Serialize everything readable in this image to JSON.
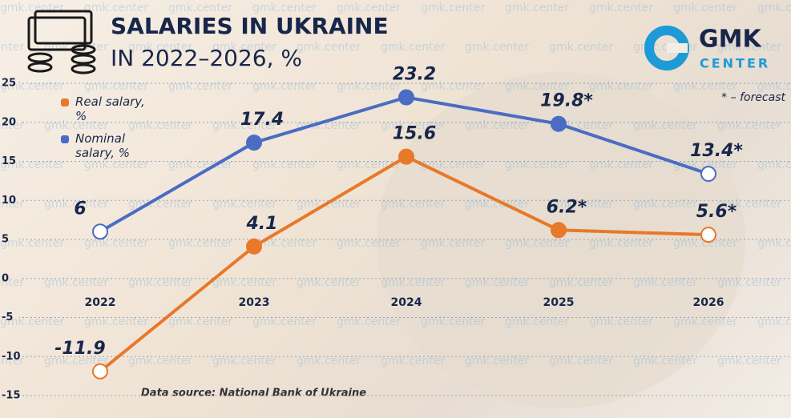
{
  "chart_data": {
    "type": "line",
    "title": "SALARIES IN UKRAINE",
    "subtitle": "IN 2022–2026, %",
    "logo": {
      "main": "GMK",
      "sub": "CENTER"
    },
    "annotation": "* – forecast",
    "source": "Data source: National Bank of Ukraine",
    "watermark": "gmk.center",
    "categories": [
      "2022",
      "2023",
      "2024",
      "2025",
      "2026"
    ],
    "series": [
      {
        "name": "Real salary, %",
        "color": "#e8782a",
        "values": [
          -11.9,
          4.1,
          15.6,
          6.2,
          5.6
        ],
        "value_labels": [
          "-11.9",
          "4.1",
          "15.6",
          "6.2*",
          "5.6*"
        ]
      },
      {
        "name": "Nominal salary, %",
        "color": "#4a6cc4",
        "values": [
          6,
          17.4,
          23.2,
          19.8,
          13.4
        ],
        "value_labels": [
          "6",
          "17.4",
          "23.2",
          "19.8*",
          "13.4*"
        ]
      }
    ],
    "ylim": [
      -15,
      25
    ],
    "yticks": [
      -15,
      -10,
      -5,
      0,
      5,
      10,
      15,
      20,
      25
    ],
    "grid": true,
    "legend": "top-left"
  }
}
